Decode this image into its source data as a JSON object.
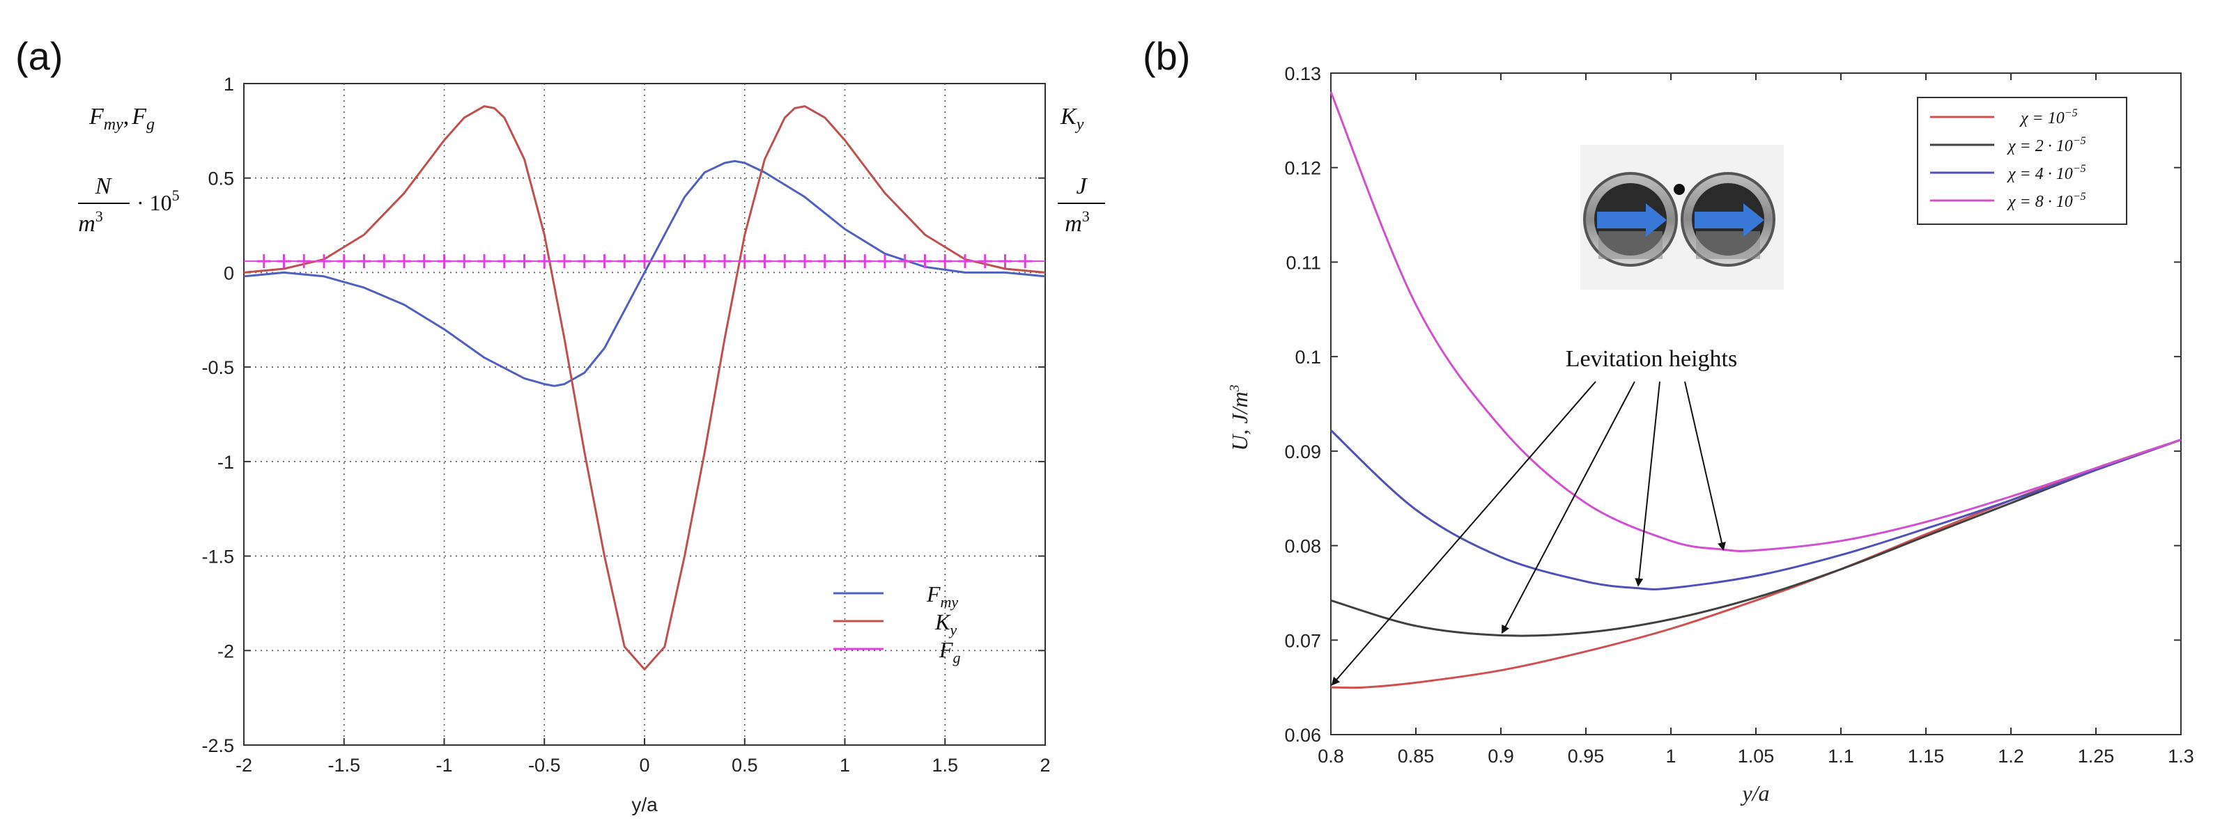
{
  "panel_labels": {
    "a": "(a)",
    "b": "(b)"
  },
  "chart_data": [
    {
      "type": "line",
      "panel": "(a)",
      "xlabel": "y/a",
      "left_axis_label": {
        "name": "F",
        "name_sub": "my",
        "sep": ",",
        "name2": "F",
        "name2_sub": "g",
        "unit_num": "N",
        "unit_den": "m",
        "unit_den_exp": "3",
        "unit_mult": "· 10",
        "unit_mult_exp": "5"
      },
      "right_axis_label": {
        "name": "K",
        "name_sub": "y",
        "unit_num": "J",
        "unit_den": "m",
        "unit_den_exp": "3"
      },
      "xlim": [
        -2,
        2
      ],
      "ylim": [
        -2.5,
        1
      ],
      "xticks": [
        -2,
        -1.5,
        -1,
        -0.5,
        0,
        0.5,
        1,
        1.5,
        2
      ],
      "yticks": [
        -2.5,
        -2,
        -1.5,
        -1,
        -0.5,
        0,
        0.5,
        1
      ],
      "xtick_labels": [
        "-2",
        "-1.5",
        "-1",
        "-0.5",
        "0",
        "0.5",
        "1",
        "1.5",
        "2"
      ],
      "ytick_labels": [
        "-2.5",
        "-2",
        "-1.5",
        "-1",
        "-0.5",
        "0",
        "0.5",
        "1"
      ],
      "grid": "dotted",
      "legend_position": "bottom-right",
      "series": [
        {
          "name": "F",
          "name_sub": "my",
          "color": "#5060c0",
          "style": "line",
          "x": [
            -2,
            -1.8,
            -1.6,
            -1.4,
            -1.2,
            -1.0,
            -0.8,
            -0.6,
            -0.5,
            -0.45,
            -0.4,
            -0.3,
            -0.2,
            -0.1,
            0,
            0.1,
            0.2,
            0.3,
            0.4,
            0.45,
            0.5,
            0.6,
            0.8,
            1.0,
            1.2,
            1.4,
            1.6,
            1.8,
            2
          ],
          "y": [
            -0.02,
            0.0,
            -0.02,
            -0.08,
            -0.17,
            -0.3,
            -0.45,
            -0.56,
            -0.59,
            -0.6,
            -0.59,
            -0.53,
            -0.4,
            -0.2,
            0.0,
            0.2,
            0.4,
            0.53,
            0.58,
            0.59,
            0.58,
            0.53,
            0.4,
            0.23,
            0.1,
            0.03,
            0.0,
            0.0,
            -0.02
          ]
        },
        {
          "name": "K",
          "name_sub": "y",
          "color": "#c0504d",
          "style": "line",
          "x": [
            -2,
            -1.8,
            -1.6,
            -1.4,
            -1.2,
            -1.0,
            -0.9,
            -0.8,
            -0.75,
            -0.7,
            -0.6,
            -0.5,
            -0.4,
            -0.3,
            -0.2,
            -0.1,
            0,
            0.1,
            0.2,
            0.3,
            0.4,
            0.5,
            0.6,
            0.7,
            0.75,
            0.8,
            0.9,
            1.0,
            1.2,
            1.4,
            1.6,
            1.8,
            2
          ],
          "y": [
            0.0,
            0.02,
            0.07,
            0.2,
            0.42,
            0.7,
            0.82,
            0.88,
            0.87,
            0.82,
            0.6,
            0.2,
            -0.35,
            -0.95,
            -1.5,
            -1.98,
            -2.1,
            -1.98,
            -1.5,
            -0.95,
            -0.35,
            0.2,
            0.6,
            0.82,
            0.87,
            0.88,
            0.82,
            0.7,
            0.42,
            0.2,
            0.07,
            0.02,
            0.0
          ]
        },
        {
          "name": "F",
          "name_sub": "g",
          "color": "#e040e0",
          "style": "plus",
          "x": [
            -1.9,
            -1.8,
            -1.7,
            -1.6,
            -1.5,
            -1.4,
            -1.3,
            -1.2,
            -1.1,
            -1.0,
            -0.9,
            -0.8,
            -0.7,
            -0.6,
            -0.5,
            -0.4,
            -0.3,
            -0.2,
            -0.1,
            0,
            0.1,
            0.2,
            0.3,
            0.4,
            0.5,
            0.6,
            0.7,
            0.8,
            0.9,
            1.0,
            1.1,
            1.2,
            1.3,
            1.4,
            1.5,
            1.6,
            1.7,
            1.8,
            1.9
          ],
          "y": [
            0.06,
            0.06,
            0.06,
            0.06,
            0.06,
            0.06,
            0.06,
            0.06,
            0.06,
            0.06,
            0.06,
            0.06,
            0.06,
            0.06,
            0.06,
            0.06,
            0.06,
            0.06,
            0.06,
            0.06,
            0.06,
            0.06,
            0.06,
            0.06,
            0.06,
            0.06,
            0.06,
            0.06,
            0.06,
            0.06,
            0.06,
            0.06,
            0.06,
            0.06,
            0.06,
            0.06,
            0.06,
            0.06,
            0.06
          ]
        }
      ]
    },
    {
      "type": "line",
      "panel": "(b)",
      "xlabel": "y/a",
      "ylabel": "U, J/m",
      "ylabel_exp": "3",
      "xlim": [
        0.8,
        1.3
      ],
      "ylim": [
        0.06,
        0.13
      ],
      "xticks": [
        0.8,
        0.85,
        0.9,
        0.95,
        1.0,
        1.05,
        1.1,
        1.15,
        1.2,
        1.25,
        1.3
      ],
      "yticks": [
        0.06,
        0.07,
        0.08,
        0.09,
        0.1,
        0.11,
        0.12,
        0.13
      ],
      "xtick_labels": [
        "0.8",
        "0.85",
        "0.9",
        "0.95",
        "1",
        "1.05",
        "1.1",
        "1.15",
        "1.2",
        "1.25",
        "1.3"
      ],
      "ytick_labels": [
        "0.06",
        "0.07",
        "0.08",
        "0.09",
        "0.1",
        "0.11",
        "0.12",
        "0.13"
      ],
      "grid": "off",
      "legend_position": "top-right",
      "annotation": "Levitation heights",
      "series": [
        {
          "name": "χ = 10",
          "name_exp": "−5",
          "color": "#d05050",
          "x": [
            0.8,
            0.82,
            0.85,
            0.9,
            0.95,
            1.0,
            1.05,
            1.1,
            1.15,
            1.2,
            1.25,
            1.3
          ],
          "y": [
            0.065,
            0.065,
            0.0655,
            0.0668,
            0.0688,
            0.0712,
            0.0742,
            0.0775,
            0.0812,
            0.0848,
            0.0882,
            0.0912
          ]
        },
        {
          "name": "χ = 2 · 10",
          "name_exp": "−5",
          "color": "#404040",
          "x": [
            0.8,
            0.85,
            0.9,
            0.95,
            1.0,
            1.05,
            1.1,
            1.15,
            1.2,
            1.25,
            1.3
          ],
          "y": [
            0.0742,
            0.0715,
            0.0705,
            0.0708,
            0.0722,
            0.0745,
            0.0775,
            0.081,
            0.0845,
            0.088,
            0.0912
          ]
        },
        {
          "name": "χ = 4 · 10",
          "name_exp": "−5",
          "color": "#5050b8",
          "x": [
            0.8,
            0.85,
            0.9,
            0.95,
            0.98,
            1.0,
            1.05,
            1.1,
            1.15,
            1.2,
            1.25,
            1.3
          ],
          "y": [
            0.0922,
            0.0838,
            0.0788,
            0.0762,
            0.0755,
            0.0755,
            0.0768,
            0.079,
            0.0818,
            0.0848,
            0.088,
            0.0912
          ]
        },
        {
          "name": "χ = 8 · 10",
          "name_exp": "−5",
          "color": "#d050d0",
          "x": [
            0.8,
            0.85,
            0.9,
            0.95,
            1.0,
            1.03,
            1.05,
            1.1,
            1.15,
            1.2,
            1.25,
            1.3
          ],
          "y": [
            0.128,
            0.1055,
            0.0925,
            0.0845,
            0.0805,
            0.0796,
            0.0795,
            0.0805,
            0.0825,
            0.0852,
            0.0882,
            0.0912
          ]
        }
      ],
      "arrow_targets": [
        {
          "x": 0.8,
          "y": 0.065
        },
        {
          "x": 0.9,
          "y": 0.0705
        },
        {
          "x": 0.98,
          "y": 0.0755
        },
        {
          "x": 1.03,
          "y": 0.0793
        }
      ]
    }
  ]
}
